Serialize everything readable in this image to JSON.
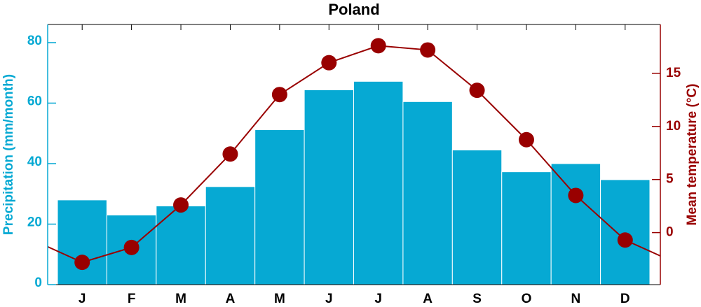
{
  "chart_data": {
    "type": "bar",
    "title": "Poland",
    "categories": [
      "J",
      "F",
      "M",
      "A",
      "M",
      "J",
      "J",
      "A",
      "S",
      "O",
      "N",
      "D"
    ],
    "ylabel": "Precipitation (mm/month)",
    "y2label": "Mean temperature (°C)",
    "ylim": [
      0,
      86
    ],
    "yticks": [
      0,
      20,
      40,
      60,
      80
    ],
    "y2lim": [
      -4.9,
      19.6
    ],
    "y2ticks": [
      0,
      5,
      10,
      15
    ],
    "series": [
      {
        "type": "bar",
        "color": "#06a9d3",
        "values": [
          28,
          23,
          26,
          32.4,
          51.2,
          64.4,
          67.2,
          60.5,
          44.5,
          37.3,
          40,
          34.7
        ]
      },
      {
        "type": "line",
        "axis": "y2",
        "color": "#990000",
        "values": [
          -2.8,
          -1.4,
          2.6,
          7.4,
          13.0,
          16.0,
          17.6,
          17.2,
          13.4,
          8.75,
          3.5,
          -0.7
        ]
      }
    ]
  }
}
